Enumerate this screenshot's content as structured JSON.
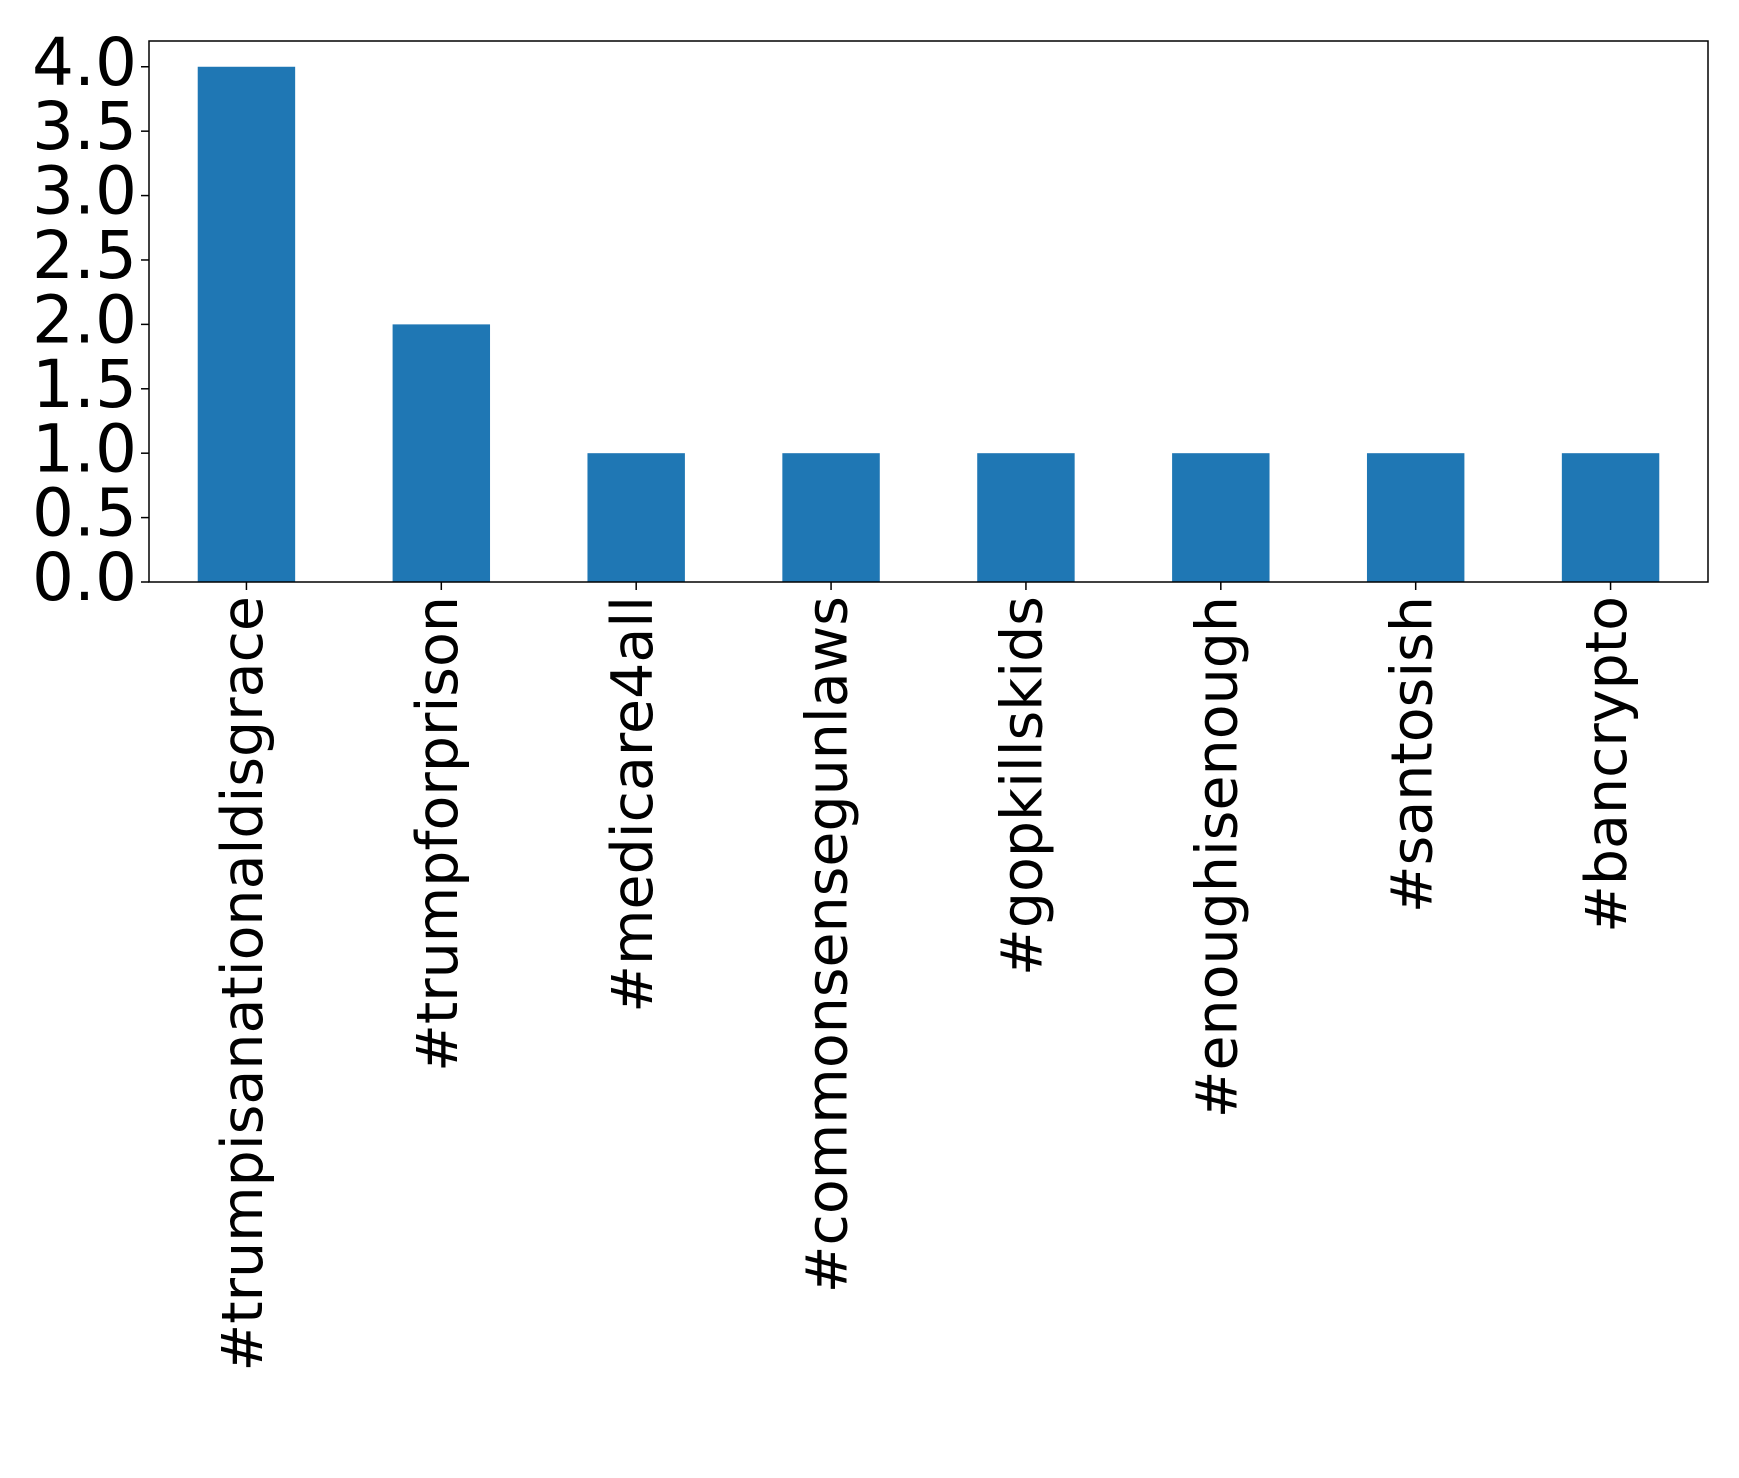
{
  "chart_data": {
    "type": "bar",
    "categories": [
      "#trumpisanationaldisgrace",
      "#trumpforprison",
      "#medicare4all",
      "#commonsensegunlaws",
      "#gopkillskids",
      "#enoughisenough",
      "#santosish",
      "#bancrypto"
    ],
    "values": [
      4,
      2,
      1,
      1,
      1,
      1,
      1,
      1
    ],
    "color": "#1f77b4",
    "ylim": [
      0,
      4.2
    ],
    "yticks": [
      {
        "value": 0,
        "label": "0.0"
      },
      0.5,
      {
        "value": 1,
        "label": "1.0"
      },
      1.5,
      {
        "value": 2,
        "label": "2.0"
      },
      2.5,
      {
        "value": 3,
        "label": "3.0"
      },
      3.5,
      {
        "value": 4,
        "label": "4.0"
      }
    ],
    "grid": false
  }
}
